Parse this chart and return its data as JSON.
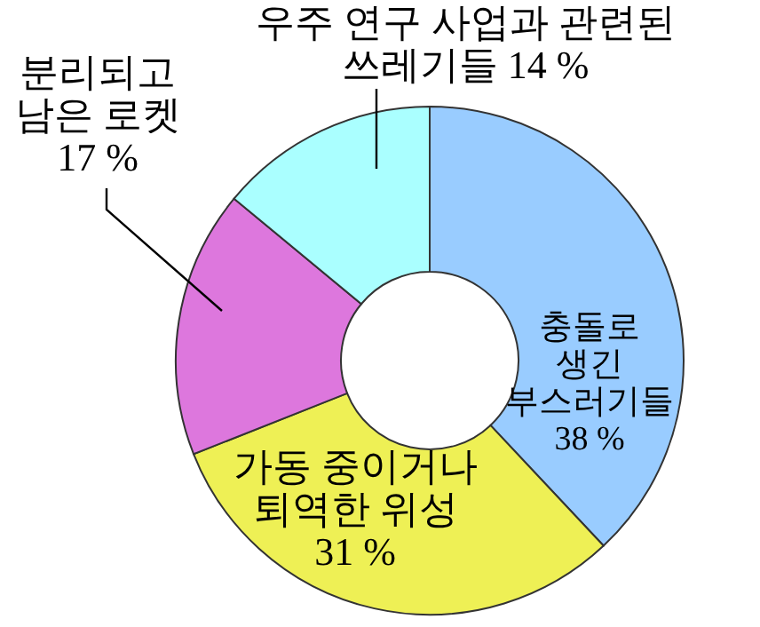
{
  "chart_data": {
    "type": "donut",
    "categories": [
      "충돌로 생긴 부스러기들",
      "가동 중이거나 퇴역한 위성",
      "분리되고 남은 로켓",
      "우주 연구 사업과 관련된 쓰레기들"
    ],
    "values": [
      38,
      31,
      17,
      14
    ],
    "value_labels": [
      "38 %",
      "31 %",
      "17 %",
      "14 %"
    ],
    "colors": [
      "#99ccff",
      "#eef055",
      "#dd77dd",
      "#aaffff"
    ]
  }
}
